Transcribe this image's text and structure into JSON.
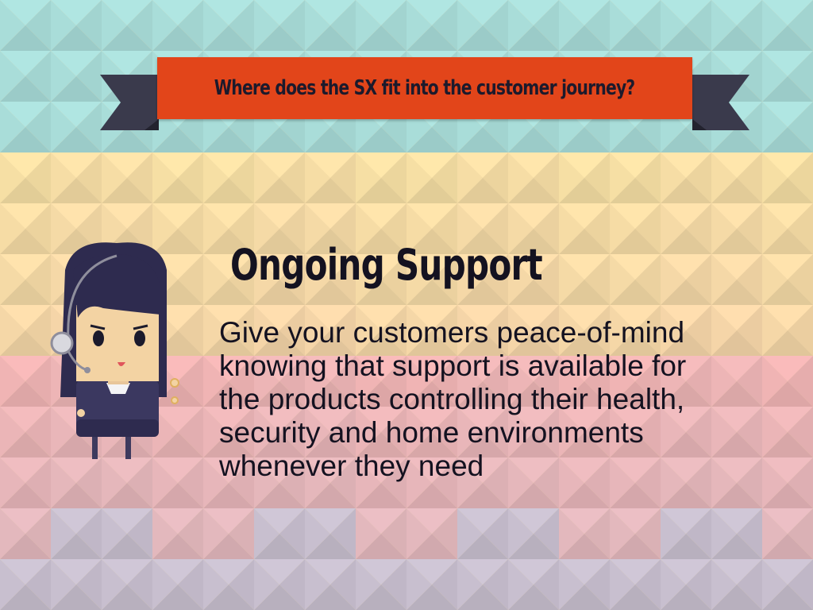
{
  "banner": {
    "title": "Where does the SX fit into the customer journey?"
  },
  "section": {
    "heading": "Ongoing Support",
    "body_lines": [
      "Give your customers peace-of-mind",
      "knowing that support is available for",
      "the products controlling their health,",
      "security and home environments",
      "whenever they need"
    ]
  },
  "illustration": {
    "icon": "support-agent-icon"
  },
  "colors": {
    "banner": "#e2451a",
    "banner_tail": "#3a3a4c",
    "text": "#141220",
    "bg_teal": "#a9ddd9",
    "bg_yellow": "#f6dfa4",
    "bg_pink": "#f0b4b4",
    "bg_lavender": "#c8bfcf"
  }
}
